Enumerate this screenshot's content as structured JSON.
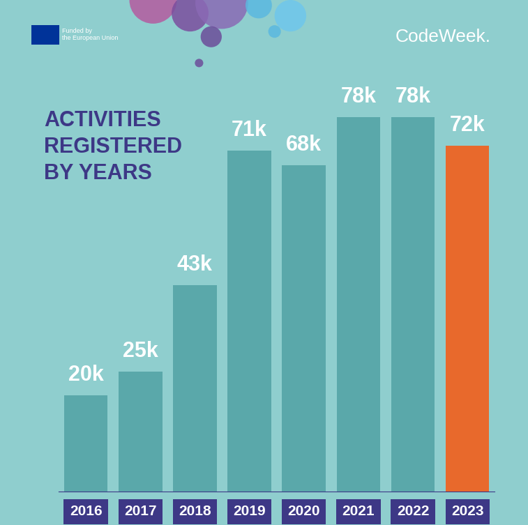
{
  "chart_data": {
    "type": "bar",
    "title": "ACTIVITIES\nREGISTERED\nBY YEARS",
    "categories": [
      "2016",
      "2017",
      "2018",
      "2019",
      "2020",
      "2021",
      "2022",
      "2023"
    ],
    "values": [
      20000,
      25000,
      43000,
      71000,
      68000,
      78000,
      78000,
      72000
    ],
    "value_labels": [
      "20k",
      "25k",
      "43k",
      "71k",
      "68k",
      "78k",
      "78k",
      "72k"
    ],
    "colors": [
      "#5aa8aa",
      "#5aa8aa",
      "#5aa8aa",
      "#5aa8aa",
      "#5aa8aa",
      "#5aa8aa",
      "#5aa8aa",
      "#e8692c"
    ],
    "data_labels": true,
    "tick_labels": "x",
    "grid": false,
    "annotations": [
      "Funded by\nthe European Union",
      "CodeWeek."
    ]
  }
}
